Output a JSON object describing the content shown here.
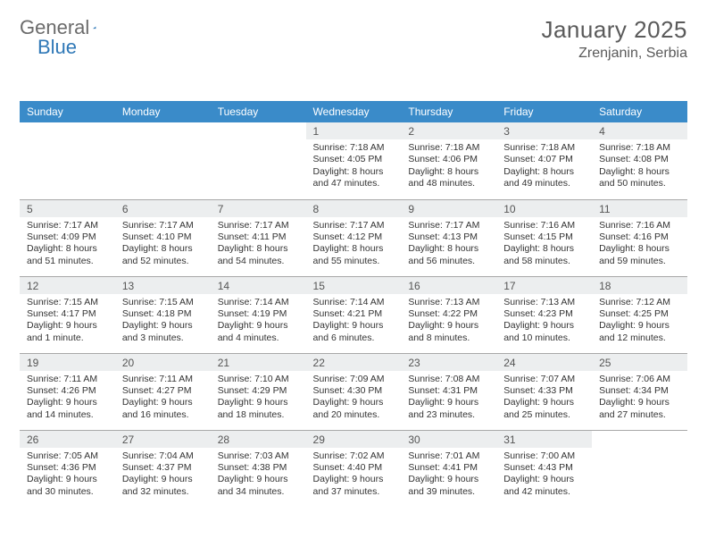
{
  "brand": {
    "word1": "General",
    "word2": "Blue"
  },
  "header": {
    "title": "January 2025",
    "location": "Zrenjanin, Serbia"
  },
  "style": {
    "header_bg": "#3a8bc9",
    "header_text": "#ffffff",
    "daynum_bg": "#eceeef",
    "cell_border": "#a8a8a8",
    "title_color": "#5a5a5a",
    "body_text": "#333333",
    "page_bg": "#ffffff"
  },
  "weekdays": [
    "Sunday",
    "Monday",
    "Tuesday",
    "Wednesday",
    "Thursday",
    "Friday",
    "Saturday"
  ],
  "weeks": [
    [
      {
        "num": "",
        "lines": []
      },
      {
        "num": "",
        "lines": []
      },
      {
        "num": "",
        "lines": []
      },
      {
        "num": "1",
        "lines": [
          "Sunrise: 7:18 AM",
          "Sunset: 4:05 PM",
          "Daylight: 8 hours and 47 minutes."
        ]
      },
      {
        "num": "2",
        "lines": [
          "Sunrise: 7:18 AM",
          "Sunset: 4:06 PM",
          "Daylight: 8 hours and 48 minutes."
        ]
      },
      {
        "num": "3",
        "lines": [
          "Sunrise: 7:18 AM",
          "Sunset: 4:07 PM",
          "Daylight: 8 hours and 49 minutes."
        ]
      },
      {
        "num": "4",
        "lines": [
          "Sunrise: 7:18 AM",
          "Sunset: 4:08 PM",
          "Daylight: 8 hours and 50 minutes."
        ]
      }
    ],
    [
      {
        "num": "5",
        "lines": [
          "Sunrise: 7:17 AM",
          "Sunset: 4:09 PM",
          "Daylight: 8 hours and 51 minutes."
        ]
      },
      {
        "num": "6",
        "lines": [
          "Sunrise: 7:17 AM",
          "Sunset: 4:10 PM",
          "Daylight: 8 hours and 52 minutes."
        ]
      },
      {
        "num": "7",
        "lines": [
          "Sunrise: 7:17 AM",
          "Sunset: 4:11 PM",
          "Daylight: 8 hours and 54 minutes."
        ]
      },
      {
        "num": "8",
        "lines": [
          "Sunrise: 7:17 AM",
          "Sunset: 4:12 PM",
          "Daylight: 8 hours and 55 minutes."
        ]
      },
      {
        "num": "9",
        "lines": [
          "Sunrise: 7:17 AM",
          "Sunset: 4:13 PM",
          "Daylight: 8 hours and 56 minutes."
        ]
      },
      {
        "num": "10",
        "lines": [
          "Sunrise: 7:16 AM",
          "Sunset: 4:15 PM",
          "Daylight: 8 hours and 58 minutes."
        ]
      },
      {
        "num": "11",
        "lines": [
          "Sunrise: 7:16 AM",
          "Sunset: 4:16 PM",
          "Daylight: 8 hours and 59 minutes."
        ]
      }
    ],
    [
      {
        "num": "12",
        "lines": [
          "Sunrise: 7:15 AM",
          "Sunset: 4:17 PM",
          "Daylight: 9 hours and 1 minute."
        ]
      },
      {
        "num": "13",
        "lines": [
          "Sunrise: 7:15 AM",
          "Sunset: 4:18 PM",
          "Daylight: 9 hours and 3 minutes."
        ]
      },
      {
        "num": "14",
        "lines": [
          "Sunrise: 7:14 AM",
          "Sunset: 4:19 PM",
          "Daylight: 9 hours and 4 minutes."
        ]
      },
      {
        "num": "15",
        "lines": [
          "Sunrise: 7:14 AM",
          "Sunset: 4:21 PM",
          "Daylight: 9 hours and 6 minutes."
        ]
      },
      {
        "num": "16",
        "lines": [
          "Sunrise: 7:13 AM",
          "Sunset: 4:22 PM",
          "Daylight: 9 hours and 8 minutes."
        ]
      },
      {
        "num": "17",
        "lines": [
          "Sunrise: 7:13 AM",
          "Sunset: 4:23 PM",
          "Daylight: 9 hours and 10 minutes."
        ]
      },
      {
        "num": "18",
        "lines": [
          "Sunrise: 7:12 AM",
          "Sunset: 4:25 PM",
          "Daylight: 9 hours and 12 minutes."
        ]
      }
    ],
    [
      {
        "num": "19",
        "lines": [
          "Sunrise: 7:11 AM",
          "Sunset: 4:26 PM",
          "Daylight: 9 hours and 14 minutes."
        ]
      },
      {
        "num": "20",
        "lines": [
          "Sunrise: 7:11 AM",
          "Sunset: 4:27 PM",
          "Daylight: 9 hours and 16 minutes."
        ]
      },
      {
        "num": "21",
        "lines": [
          "Sunrise: 7:10 AM",
          "Sunset: 4:29 PM",
          "Daylight: 9 hours and 18 minutes."
        ]
      },
      {
        "num": "22",
        "lines": [
          "Sunrise: 7:09 AM",
          "Sunset: 4:30 PM",
          "Daylight: 9 hours and 20 minutes."
        ]
      },
      {
        "num": "23",
        "lines": [
          "Sunrise: 7:08 AM",
          "Sunset: 4:31 PM",
          "Daylight: 9 hours and 23 minutes."
        ]
      },
      {
        "num": "24",
        "lines": [
          "Sunrise: 7:07 AM",
          "Sunset: 4:33 PM",
          "Daylight: 9 hours and 25 minutes."
        ]
      },
      {
        "num": "25",
        "lines": [
          "Sunrise: 7:06 AM",
          "Sunset: 4:34 PM",
          "Daylight: 9 hours and 27 minutes."
        ]
      }
    ],
    [
      {
        "num": "26",
        "lines": [
          "Sunrise: 7:05 AM",
          "Sunset: 4:36 PM",
          "Daylight: 9 hours and 30 minutes."
        ]
      },
      {
        "num": "27",
        "lines": [
          "Sunrise: 7:04 AM",
          "Sunset: 4:37 PM",
          "Daylight: 9 hours and 32 minutes."
        ]
      },
      {
        "num": "28",
        "lines": [
          "Sunrise: 7:03 AM",
          "Sunset: 4:38 PM",
          "Daylight: 9 hours and 34 minutes."
        ]
      },
      {
        "num": "29",
        "lines": [
          "Sunrise: 7:02 AM",
          "Sunset: 4:40 PM",
          "Daylight: 9 hours and 37 minutes."
        ]
      },
      {
        "num": "30",
        "lines": [
          "Sunrise: 7:01 AM",
          "Sunset: 4:41 PM",
          "Daylight: 9 hours and 39 minutes."
        ]
      },
      {
        "num": "31",
        "lines": [
          "Sunrise: 7:00 AM",
          "Sunset: 4:43 PM",
          "Daylight: 9 hours and 42 minutes."
        ]
      },
      {
        "num": "",
        "lines": []
      }
    ]
  ]
}
